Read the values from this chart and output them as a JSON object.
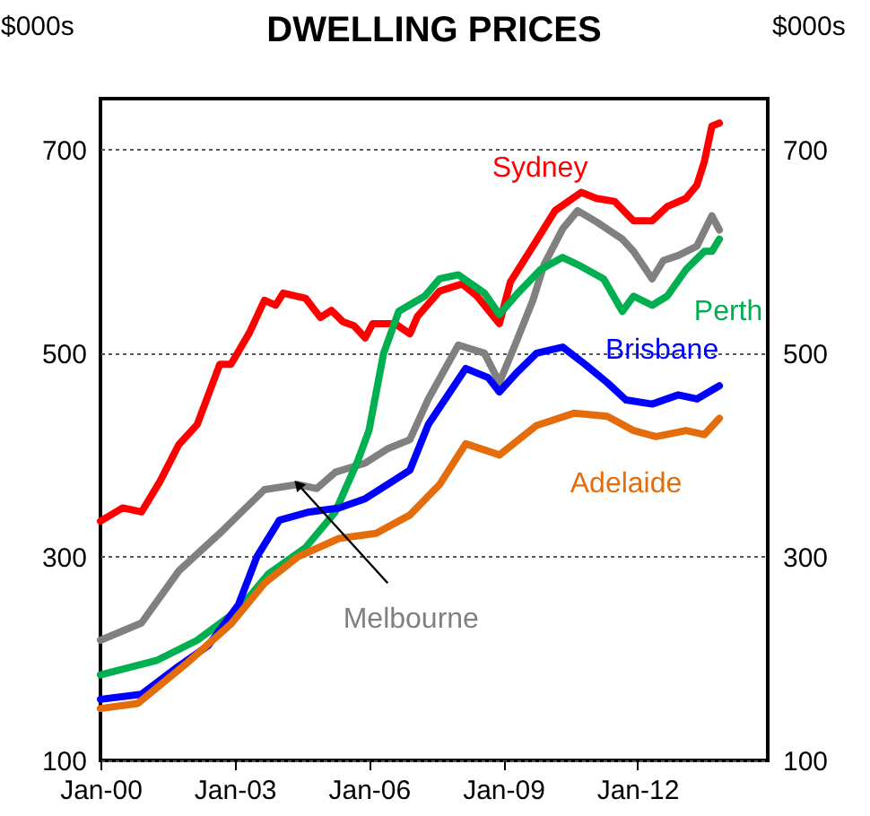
{
  "chart_data": {
    "type": "line",
    "title": "DWELLING PRICES",
    "ylabel": "$000s",
    "y2label": "$000s",
    "xlim": [
      "2000-01",
      "2014-12"
    ],
    "xticks": [
      {
        "value": "2000-01",
        "label": "Jan-00"
      },
      {
        "value": "2003-01",
        "label": "Jan-03"
      },
      {
        "value": "2006-01",
        "label": "Jan-06"
      },
      {
        "value": "2009-01",
        "label": "Jan-09"
      },
      {
        "value": "2012-01",
        "label": "Jan-12"
      }
    ],
    "ylim": [
      100,
      750
    ],
    "yticks": [
      100,
      300,
      500,
      700
    ],
    "y2lim": [
      100,
      750
    ],
    "y2ticks": [
      100,
      300,
      500,
      700
    ],
    "grid": "y",
    "series": [
      {
        "name": "Sydney",
        "color": "#ff0000",
        "x": [
          "2000-01",
          "2000-07",
          "2000-12",
          "2001-05",
          "2001-10",
          "2002-03",
          "2002-09",
          "2002-12",
          "2003-05",
          "2003-09",
          "2003-12",
          "2004-02",
          "2004-08",
          "2004-12",
          "2005-03",
          "2005-06",
          "2005-09",
          "2005-12",
          "2006-02",
          "2006-08",
          "2006-12",
          "2007-02",
          "2007-08",
          "2008-02",
          "2008-06",
          "2008-12",
          "2009-03",
          "2009-09",
          "2010-03",
          "2010-10",
          "2011-02",
          "2011-07",
          "2011-12",
          "2012-05",
          "2012-09",
          "2013-02",
          "2013-05",
          "2013-07",
          "2013-09",
          "2013-11"
        ],
        "values": [
          335,
          348,
          344,
          374,
          410,
          430,
          489,
          489,
          520,
          552,
          547,
          559,
          554,
          535,
          542,
          531,
          527,
          515,
          529,
          529,
          519,
          536,
          561,
          568,
          556,
          529,
          570,
          605,
          640,
          658,
          652,
          649,
          630,
          630,
          644,
          652,
          665,
          688,
          723,
          726
        ]
      },
      {
        "name": "Melbourne",
        "color": "#808080",
        "x": [
          "2000-01",
          "2000-12",
          "2001-10",
          "2002-09",
          "2003-09",
          "2004-06",
          "2004-11",
          "2005-04",
          "2005-12",
          "2006-06",
          "2006-12",
          "2007-05",
          "2008-01",
          "2008-08",
          "2008-12",
          "2009-04",
          "2009-09",
          "2009-12",
          "2010-05",
          "2010-09",
          "2011-02",
          "2011-09",
          "2011-12",
          "2012-05",
          "2012-08",
          "2012-12",
          "2013-05",
          "2013-09",
          "2013-11"
        ],
        "values": [
          218,
          235,
          286,
          323,
          366,
          371,
          367,
          383,
          392,
          406,
          415,
          455,
          508,
          500,
          471,
          506,
          552,
          587,
          622,
          640,
          629,
          612,
          600,
          573,
          591,
          596,
          605,
          635,
          621
        ]
      },
      {
        "name": "Perth",
        "color": "#00b050",
        "x": [
          "2000-01",
          "2001-04",
          "2002-03",
          "2003-02",
          "2003-10",
          "2004-08",
          "2005-04",
          "2005-10",
          "2006-01",
          "2006-05",
          "2006-09",
          "2007-04",
          "2007-08",
          "2008-01",
          "2008-08",
          "2008-12",
          "2009-05",
          "2009-11",
          "2010-05",
          "2010-09",
          "2011-04",
          "2011-09",
          "2011-12",
          "2012-05",
          "2012-09",
          "2013-02",
          "2013-07",
          "2013-09",
          "2013-11"
        ],
        "values": [
          184,
          198,
          218,
          248,
          283,
          309,
          344,
          394,
          424,
          500,
          541,
          556,
          573,
          577,
          559,
          538,
          559,
          582,
          594,
          587,
          573,
          541,
          556,
          547,
          556,
          582,
          600,
          600,
          612
        ]
      },
      {
        "name": "Brisbane",
        "color": "#0000ff",
        "x": [
          "2000-01",
          "2000-12",
          "2001-09",
          "2002-06",
          "2003-02",
          "2003-07",
          "2004-01",
          "2004-09",
          "2005-05",
          "2005-12",
          "2006-06",
          "2006-12",
          "2007-05",
          "2008-03",
          "2008-09",
          "2008-12",
          "2009-05",
          "2009-10",
          "2010-05",
          "2010-11",
          "2011-05",
          "2011-10",
          "2012-05",
          "2012-12",
          "2013-05",
          "2013-11"
        ],
        "values": [
          160,
          165,
          190,
          213,
          253,
          300,
          336,
          344,
          348,
          357,
          371,
          385,
          430,
          485,
          476,
          462,
          482,
          500,
          506,
          489,
          471,
          454,
          450,
          459,
          455,
          468
        ]
      },
      {
        "name": "Adelaide",
        "color": "#e46c0a",
        "x": [
          "2000-01",
          "2000-11",
          "2001-12",
          "2002-12",
          "2003-09",
          "2004-06",
          "2005-05",
          "2006-03",
          "2006-12",
          "2007-08",
          "2008-03",
          "2008-12",
          "2009-10",
          "2010-08",
          "2011-05",
          "2011-12",
          "2012-06",
          "2013-02",
          "2013-07",
          "2013-11"
        ],
        "values": [
          151,
          156,
          195,
          234,
          274,
          300,
          318,
          323,
          341,
          371,
          411,
          400,
          429,
          441,
          438,
          424,
          418,
          424,
          420,
          436
        ]
      }
    ]
  }
}
